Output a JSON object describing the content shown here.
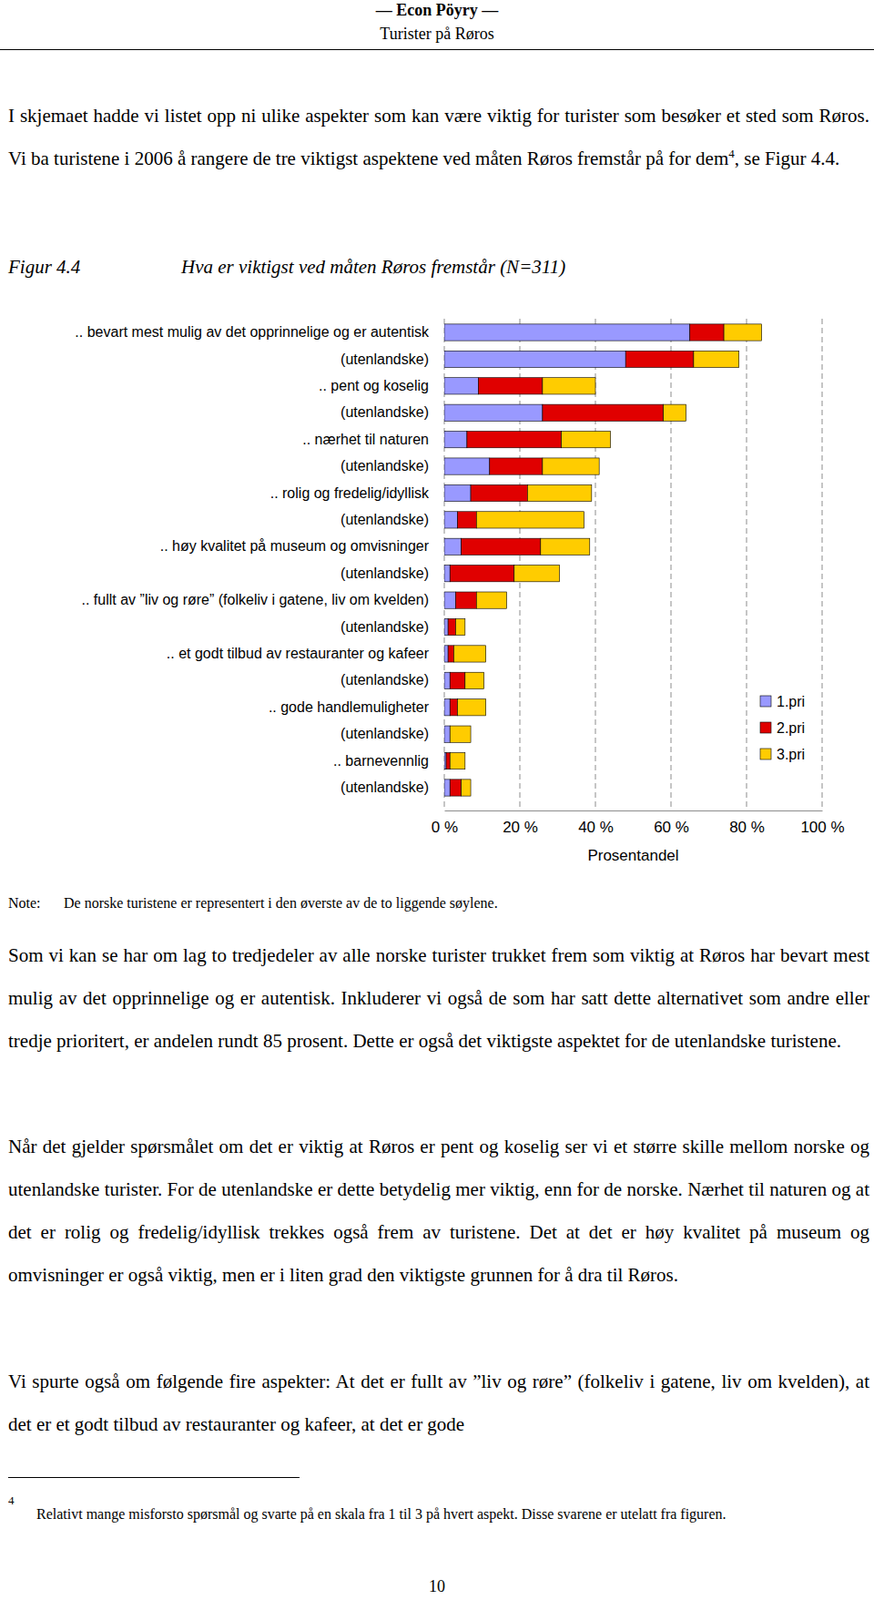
{
  "header": {
    "org": "— Econ Pöyry —",
    "title": "Turister på Røros"
  },
  "paragraphs": [
    {
      "before": "I skjemaet hadde vi listet opp ni ulike aspekter som kan være viktig for turister som besøker et sted som Røros. Vi ba turistene i 2006 å rangere de tre viktigst aspektene ved måten Røros fremstår på for dem",
      "footnote_ref": "4",
      "after": ", se Figur 4.4."
    },
    {
      "text": "Som vi kan se har om lag to tredjedeler av alle norske turister trukket frem som viktig at Røros har bevart mest mulig av det opprinnelige og er autentisk. Inkluderer vi også de som har satt dette alternativet som andre eller tredje prioritert, er andelen rundt 85 prosent. Dette er også det viktigste aspektet for de utenlandske turistene."
    },
    {
      "text": "Når det gjelder spørsmålet om det er viktig at Røros er pent og koselig ser vi et større skille mellom norske og utenlandske turister. For de utenlandske er dette betydelig mer viktig, enn for de norske. Nærhet til naturen og at det er rolig og fredelig/idyllisk trekkes også frem av turistene. Det at det er høy kvalitet på museum og omvisninger er også viktig, men er i liten grad den viktigste grunnen for å dra til Røros."
    },
    {
      "text": "Vi spurte også om følgende fire aspekter: At det er fullt av ”liv og røre” (folkeliv i gatene, liv om kvelden), at det er et godt tilbud av restauranter og kafeer, at det er gode"
    }
  ],
  "figure": {
    "label": "Figur 4.4"
  },
  "note": {
    "label": "Note:",
    "text": "De norske turistene er representert i den øverste av de to liggende søylene."
  },
  "footnote": {
    "marker": "4",
    "text": "Relativt mange misforsto spørsmål og svarte på en skala fra 1 til 3 på hvert aspekt. Disse svarene er utelatt fra figuren."
  },
  "page_number": "10",
  "chart_data": {
    "type": "bar",
    "orientation": "horizontal",
    "stacked": true,
    "grid": true,
    "legend": "right",
    "title": "Hva er viktigst ved måten Røros fremstår (N=311)",
    "xlabel": "Prosentandel",
    "categories": [
      ".. bevart mest mulig av det opprinnelige og er autentisk",
      "(utenlandske)",
      ".. pent og koselig",
      "(utenlandske)",
      ".. nærhet til naturen",
      "(utenlandske)",
      ".. rolig og fredelig/idyllisk",
      "(utenlandske)",
      ".. høy kvalitet på museum og omvisninger",
      "(utenlandske)",
      ".. fullt av ”liv og røre” (folkeliv i gatene, liv om kvelden)",
      "(utenlandske)",
      ".. et godt tilbud av restauranter og kafeer",
      "(utenlandske)",
      ".. gode handlemuligheter",
      "(utenlandske)",
      ".. barnevennlig",
      "(utenlandske)"
    ],
    "series": [
      {
        "name": "1.pri",
        "color": "#9999ff",
        "values": [
          65,
          48,
          9,
          26,
          6,
          12,
          7,
          3.5,
          4.5,
          1.5,
          3,
          1,
          1,
          1.5,
          1.5,
          1.5,
          0.5,
          1.5
        ]
      },
      {
        "name": "2.pri",
        "color": "#e00000",
        "values": [
          9,
          18,
          17,
          32,
          25,
          14,
          15,
          5,
          21,
          17,
          5.5,
          2,
          1.5,
          4,
          2,
          0,
          1,
          3
        ]
      },
      {
        "name": "3.pri",
        "color": "#ffcc00",
        "values": [
          10,
          12,
          14,
          6,
          13,
          15,
          17,
          28.5,
          13,
          12,
          8,
          2.5,
          8.5,
          5,
          7.5,
          5.5,
          4,
          2.5
        ]
      }
    ],
    "xlim": [
      0,
      100
    ],
    "xticks": [
      {
        "value": 0,
        "label": "0 %"
      },
      {
        "value": 20,
        "label": "20 %"
      },
      {
        "value": 40,
        "label": "40 %"
      },
      {
        "value": 60,
        "label": "60 %"
      },
      {
        "value": 80,
        "label": "80 %"
      },
      {
        "value": 100,
        "label": "100 %"
      }
    ]
  }
}
